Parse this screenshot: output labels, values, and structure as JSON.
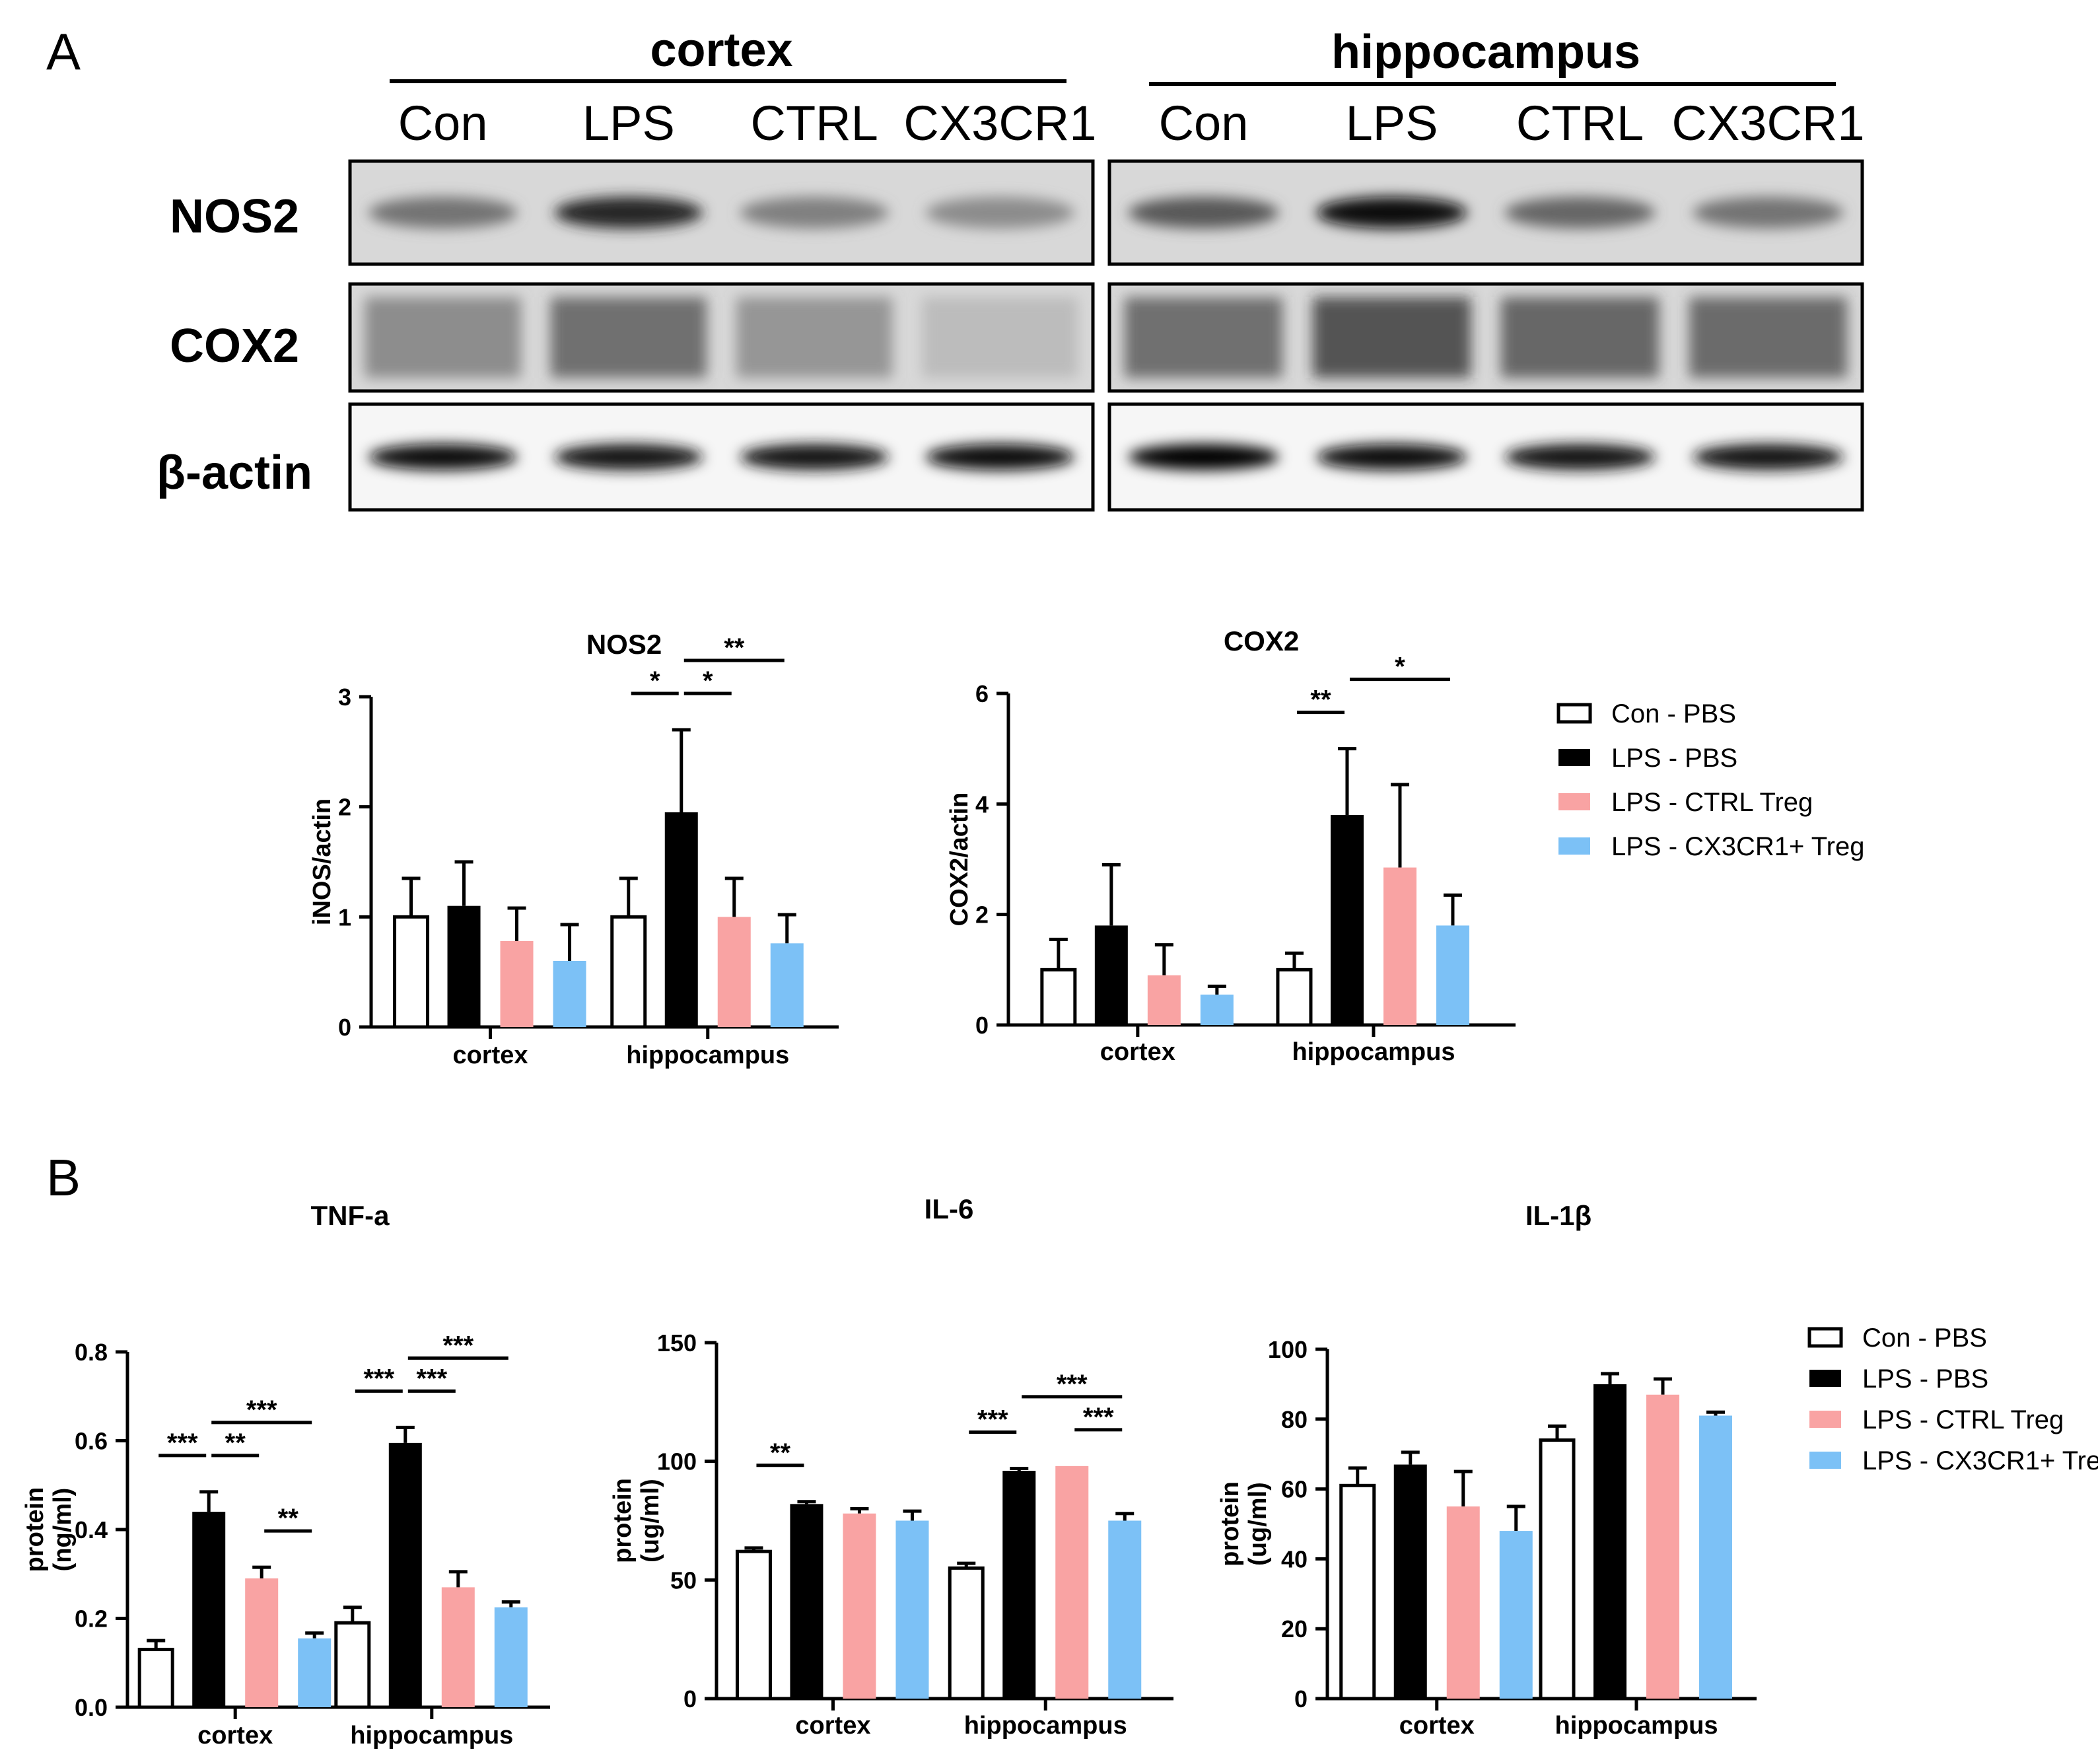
{
  "panel_a_label": "A",
  "panel_b_label": "B",
  "blot": {
    "tissues": [
      "cortex",
      "hippocampus"
    ],
    "lanes": [
      "Con",
      "LPS",
      "CTRL",
      "CX3CR1"
    ],
    "rows": [
      "NOS2",
      "COX2",
      "β-actin"
    ],
    "band_intensity": {
      "NOS2": {
        "cortex": [
          0.55,
          0.85,
          0.5,
          0.45
        ],
        "hippocampus": [
          0.65,
          0.95,
          0.6,
          0.55
        ]
      },
      "COX2": {
        "cortex": [
          0.55,
          0.7,
          0.5,
          0.3
        ],
        "hippocampus": [
          0.7,
          0.85,
          0.75,
          0.72
        ]
      },
      "β-actin": {
        "cortex": [
          0.95,
          0.92,
          0.9,
          0.95
        ],
        "hippocampus": [
          0.98,
          0.95,
          0.93,
          0.92
        ]
      }
    }
  },
  "legend": {
    "entries": [
      "Con - PBS",
      "LPS - PBS",
      "LPS - CTRL Treg",
      "LPS - CX3CR1+ Treg"
    ]
  },
  "colors": {
    "Con - PBS": "#ffffff",
    "LPS - PBS": "#000000",
    "LPS - CTRL Treg": "#f9a3a3",
    "LPS - CX3CR1+ Treg": "#7cc1f6"
  },
  "chart_data": [
    {
      "id": "nos2",
      "type": "bar",
      "title": "NOS2",
      "ylabel": "iNOS/actin",
      "xlabel": "",
      "ylim": [
        0,
        3
      ],
      "yticks": [
        "0",
        "1",
        "2",
        "3"
      ],
      "categories": [
        "cortex",
        "hippocampus"
      ],
      "series": [
        {
          "name": "Con - PBS",
          "values": [
            1.0,
            1.0
          ],
          "errors": [
            0.35,
            0.35
          ]
        },
        {
          "name": "LPS - PBS",
          "values": [
            1.1,
            1.95
          ],
          "errors": [
            0.4,
            0.75
          ]
        },
        {
          "name": "LPS - CTRL Treg",
          "values": [
            0.78,
            1.0
          ],
          "errors": [
            0.3,
            0.35
          ]
        },
        {
          "name": "LPS - CX3CR1+ Treg",
          "values": [
            0.6,
            0.76
          ],
          "errors": [
            0.33,
            0.26
          ]
        }
      ],
      "significance": [
        {
          "category": "hippocampus",
          "from": 0,
          "to": 1,
          "label": "*"
        },
        {
          "category": "hippocampus",
          "from": 1,
          "to": 2,
          "label": "*"
        },
        {
          "category": "hippocampus",
          "from": 1,
          "to": 3,
          "label": "**"
        }
      ]
    },
    {
      "id": "cox2",
      "type": "bar",
      "title": "COX2",
      "ylabel": "COX2/actin",
      "xlabel": "",
      "ylim": [
        0,
        6
      ],
      "yticks": [
        "0",
        "2",
        "4",
        "6"
      ],
      "categories": [
        "cortex",
        "hippocampus"
      ],
      "series": [
        {
          "name": "Con - PBS",
          "values": [
            1.0,
            1.0
          ],
          "errors": [
            0.55,
            0.3
          ]
        },
        {
          "name": "LPS - PBS",
          "values": [
            1.8,
            3.8
          ],
          "errors": [
            1.1,
            1.2
          ]
        },
        {
          "name": "LPS - CTRL Treg",
          "values": [
            0.9,
            2.85
          ],
          "errors": [
            0.55,
            1.5
          ]
        },
        {
          "name": "LPS - CX3CR1+ Treg",
          "values": [
            0.55,
            1.8
          ],
          "errors": [
            0.15,
            0.55
          ]
        }
      ],
      "significance": [
        {
          "category": "hippocampus",
          "from": 0,
          "to": 1,
          "label": "**"
        },
        {
          "category": "hippocampus",
          "from": 1,
          "to": 3,
          "label": "*"
        }
      ]
    },
    {
      "id": "tnf",
      "type": "bar",
      "title": "TNF-a",
      "ylabel": "protein (ng/ml)",
      "xlabel": "",
      "ylim": [
        0,
        0.8
      ],
      "yticks": [
        "0.0",
        "0.2",
        "0.4",
        "0.6",
        "0.8"
      ],
      "categories": [
        "cortex",
        "hippocampus"
      ],
      "series": [
        {
          "name": "Con - PBS",
          "values": [
            0.13,
            0.19
          ],
          "errors": [
            0.02,
            0.035
          ]
        },
        {
          "name": "LPS - PBS",
          "values": [
            0.44,
            0.595
          ],
          "errors": [
            0.045,
            0.035
          ]
        },
        {
          "name": "LPS - CTRL Treg",
          "values": [
            0.29,
            0.27
          ],
          "errors": [
            0.025,
            0.035
          ]
        },
        {
          "name": "LPS - CX3CR1+ Treg",
          "values": [
            0.155,
            0.225
          ],
          "errors": [
            0.012,
            0.012
          ]
        }
      ],
      "significance": [
        {
          "category": "cortex",
          "from": 0,
          "to": 1,
          "label": "***"
        },
        {
          "category": "cortex",
          "from": 1,
          "to": 2,
          "label": "**"
        },
        {
          "category": "cortex",
          "from": 2,
          "to": 3,
          "label": "**"
        },
        {
          "category": "cortex",
          "from": 1,
          "to": 3,
          "label": "***"
        },
        {
          "category": "hippocampus",
          "from": 0,
          "to": 1,
          "label": "***"
        },
        {
          "category": "hippocampus",
          "from": 1,
          "to": 2,
          "label": "***"
        },
        {
          "category": "hippocampus",
          "from": 1,
          "to": 3,
          "label": "***"
        }
      ]
    },
    {
      "id": "il6",
      "type": "bar",
      "title": "IL-6",
      "ylabel": "protein (ug/ml)",
      "xlabel": "",
      "ylim": [
        0,
        150
      ],
      "yticks": [
        "0",
        "50",
        "100",
        "150"
      ],
      "categories": [
        "cortex",
        "hippocampus"
      ],
      "series": [
        {
          "name": "Con - PBS",
          "values": [
            62,
            55
          ],
          "errors": [
            1.5,
            2
          ]
        },
        {
          "name": "LPS - PBS",
          "values": [
            82,
            96
          ],
          "errors": [
            1,
            1
          ]
        },
        {
          "name": "LPS - CTRL Treg",
          "values": [
            78,
            98
          ],
          "errors": [
            2,
            0
          ]
        },
        {
          "name": "LPS - CX3CR1+ Treg",
          "values": [
            75,
            75
          ],
          "errors": [
            4,
            3
          ]
        }
      ],
      "significance": [
        {
          "category": "cortex",
          "from": 0,
          "to": 1,
          "label": "**"
        },
        {
          "category": "hippocampus",
          "from": 0,
          "to": 1,
          "label": "***"
        },
        {
          "category": "hippocampus",
          "from": 1,
          "to": 3,
          "label": "***"
        },
        {
          "category": "hippocampus",
          "from": 2,
          "to": 3,
          "label": "***"
        }
      ]
    },
    {
      "id": "il1b",
      "type": "bar",
      "title": "IL-1β",
      "ylabel": "protein (ug/ml)",
      "xlabel": "",
      "ylim": [
        0,
        100
      ],
      "yticks": [
        "0",
        "20",
        "40",
        "60",
        "80",
        "100"
      ],
      "categories": [
        "cortex",
        "hippocampus"
      ],
      "series": [
        {
          "name": "Con - PBS",
          "values": [
            61,
            74
          ],
          "errors": [
            5,
            4
          ]
        },
        {
          "name": "LPS - PBS",
          "values": [
            67,
            90
          ],
          "errors": [
            3.5,
            3
          ]
        },
        {
          "name": "LPS - CTRL Treg",
          "values": [
            55,
            87
          ],
          "errors": [
            10,
            4.5
          ]
        },
        {
          "name": "LPS - CX3CR1+ Treg",
          "values": [
            48,
            81
          ],
          "errors": [
            7,
            1
          ]
        }
      ],
      "significance": []
    }
  ]
}
